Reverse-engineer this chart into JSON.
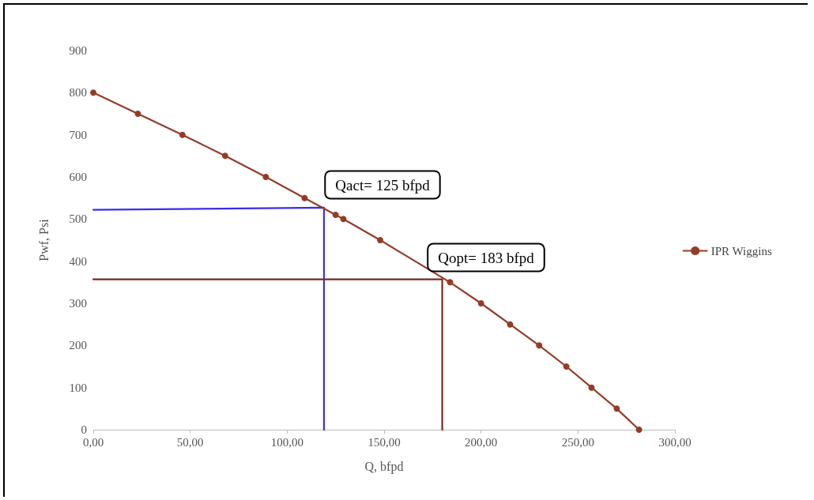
{
  "chart_data": {
    "type": "line",
    "xlabel": "Q, bfpd",
    "ylabel": "Pwf, Psi",
    "xlim": [
      0,
      300
    ],
    "xticks": [
      {
        "value": 0,
        "label": "0,00"
      },
      {
        "value": 50,
        "label": "50,00"
      },
      {
        "value": 100,
        "label": "100,00"
      },
      {
        "value": 150,
        "label": "150,00"
      },
      {
        "value": 200,
        "label": "200,00"
      },
      {
        "value": 250,
        "label": "250,00"
      },
      {
        "value": 300,
        "label": "300,00"
      }
    ],
    "ylim": [
      0,
      900
    ],
    "yticks": [
      0,
      100,
      200,
      300,
      400,
      500,
      600,
      700,
      800,
      900
    ],
    "series": [
      {
        "name": "IPR Wiggins",
        "color": "#943c27",
        "x": [
          0,
          23,
          46,
          68,
          89,
          109,
          125,
          129,
          148,
          184,
          200,
          215,
          230,
          244,
          257,
          270,
          281.5
        ],
        "values": [
          800,
          750,
          700,
          650,
          600,
          550,
          510,
          500,
          450,
          350,
          300,
          250,
          200,
          150,
          100,
          50,
          0
        ]
      },
      {
        "color": "#3a2cf0",
        "marker": "none",
        "x": [
          0,
          119,
          119
        ],
        "values": [
          522,
          527,
          0
        ]
      },
      {
        "color": "#7a2a1c",
        "marker": "none",
        "x": [
          0,
          180,
          180
        ],
        "values": [
          357,
          357,
          0
        ]
      }
    ],
    "annotations": [
      "Qact= 125 bfpd",
      "Qopt= 183 bfpd"
    ],
    "marker": "circle",
    "line_style": "solid",
    "grid": false,
    "legend": "right"
  }
}
